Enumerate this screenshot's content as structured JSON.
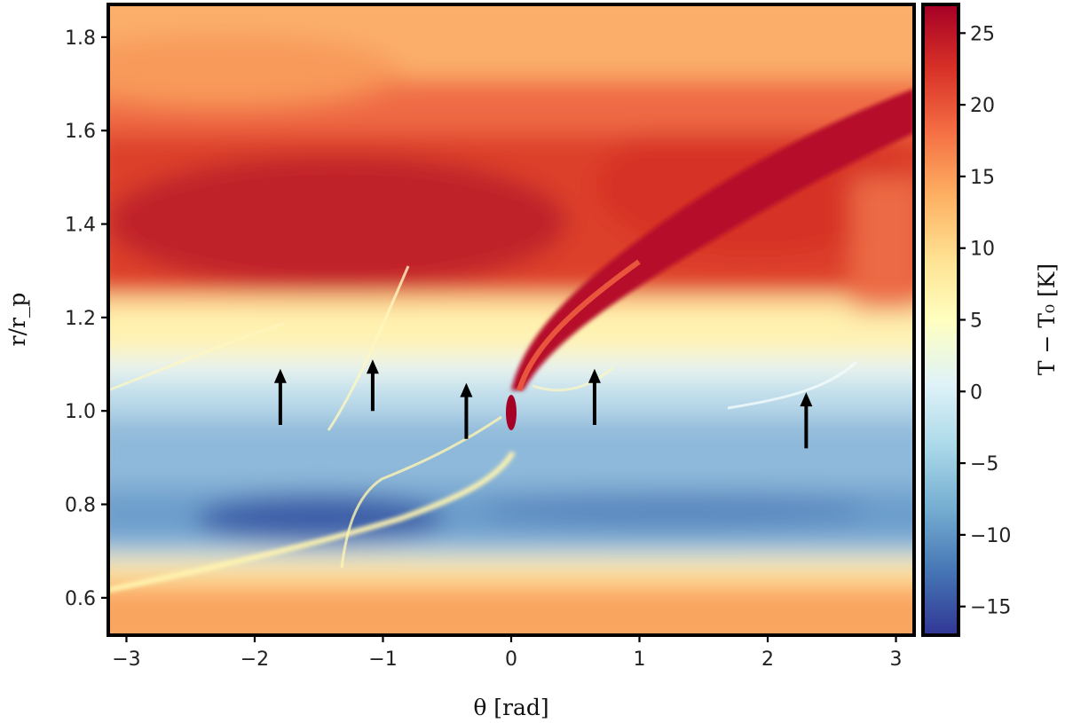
{
  "chart_data": {
    "type": "heatmap",
    "title": "",
    "xlabel": "θ [rad]",
    "ylabel": "r/r_p",
    "xlim": [
      -3.14159,
      3.14159
    ],
    "ylim": [
      0.52,
      1.87
    ],
    "xticks": [
      -3,
      -2,
      -1,
      0,
      1,
      2,
      3
    ],
    "xtick_labels": [
      "−3",
      "−2",
      "−1",
      "0",
      "1",
      "2",
      "3"
    ],
    "yticks": [
      0.6,
      0.8,
      1.0,
      1.2,
      1.4,
      1.6,
      1.8
    ],
    "ytick_labels": [
      "0.6",
      "0.8",
      "1.0",
      "1.2",
      "1.4",
      "1.6",
      "1.8"
    ],
    "colorbar": {
      "label": "T − T₀ [K]",
      "range": [
        -17,
        27
      ],
      "ticks": [
        -15,
        -10,
        -5,
        0,
        5,
        10,
        15,
        20,
        25
      ],
      "tick_labels": [
        "−15",
        "−10",
        "−5",
        "0",
        "5",
        "10",
        "15",
        "20",
        "25"
      ],
      "colormap": "RdYlBu_r"
    },
    "arrows": [
      {
        "theta": -1.8,
        "r_tail": 0.97,
        "r_head": 1.09
      },
      {
        "theta": -1.08,
        "r_tail": 1.0,
        "r_head": 1.11
      },
      {
        "theta": -0.35,
        "r_tail": 0.94,
        "r_head": 1.06
      },
      {
        "theta": 0.65,
        "r_tail": 0.97,
        "r_head": 1.09
      },
      {
        "theta": 2.3,
        "r_tail": 0.92,
        "r_head": 1.04
      }
    ],
    "planet": {
      "theta": 0.0,
      "r": 1.0,
      "value": 27
    },
    "grid": false
  }
}
